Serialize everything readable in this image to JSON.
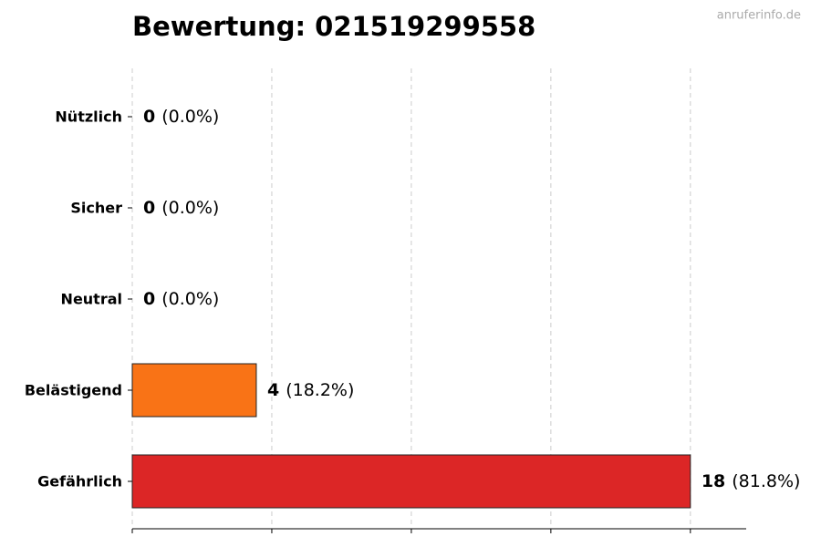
{
  "chart_data": {
    "type": "barh",
    "title": "Bewertung: 021519299558",
    "watermark": "anruferinfo.de",
    "categories": [
      "Nützlich",
      "Sicher",
      "Neutral",
      "Belästigend",
      "Gefährlich"
    ],
    "values": [
      0,
      0,
      0,
      4,
      18
    ],
    "percent_labels": [
      "(0.0%)",
      "(0.0%)",
      "(0.0%)",
      "(18.2%)",
      "(81.8%)"
    ],
    "colors": [
      "#1a9850",
      "#4caf50",
      "#9e9e9e",
      "#f97316",
      "#dc2626"
    ],
    "xlim": [
      0,
      19.8
    ],
    "xticks": [
      0,
      4.5,
      9,
      13.5,
      18
    ],
    "grid": true
  }
}
